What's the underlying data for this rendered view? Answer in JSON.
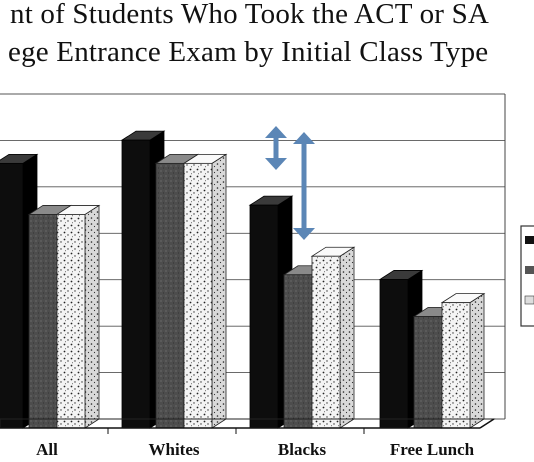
{
  "chart_data": {
    "type": "bar",
    "title_lines": [
      "nt of Students Who Took the ACT or SA",
      "ege Entrance Exam by Initial Class Type"
    ],
    "categories": [
      "All",
      "Whites",
      "Blacks",
      "Free Lunch"
    ],
    "series": [
      {
        "values": [
          57,
          62,
          48,
          32
        ],
        "color": "#0d0d0d"
      },
      {
        "values": [
          46,
          57,
          33,
          24
        ],
        "color": "#4a4a4a"
      },
      {
        "values": [
          46,
          57,
          37,
          27
        ],
        "color": "#ececec"
      }
    ],
    "ylim": [
      0,
      70
    ],
    "grid": true,
    "annotations": [
      "double arrow",
      "double arrow"
    ],
    "annotation_color": "#5b86b6"
  }
}
